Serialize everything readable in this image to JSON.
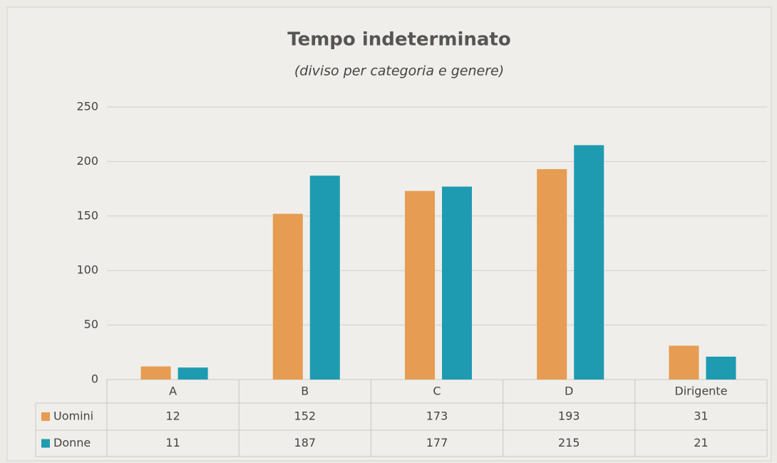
{
  "chart_data": {
    "type": "bar",
    "title": "Tempo indeterminato",
    "subtitle": "(diviso per categoria e genere)",
    "categories": [
      "A",
      "B",
      "C",
      "D",
      "Dirigente"
    ],
    "series": [
      {
        "name": "Uomini",
        "color": "#e69c52",
        "values": [
          12,
          152,
          173,
          193,
          31
        ]
      },
      {
        "name": "Donne",
        "color": "#1e9bb1",
        "values": [
          11,
          187,
          177,
          215,
          21
        ]
      }
    ],
    "ylim": [
      0,
      250
    ],
    "yticks": [
      0,
      50,
      100,
      150,
      200,
      250
    ],
    "grid": true,
    "legend": "table"
  }
}
